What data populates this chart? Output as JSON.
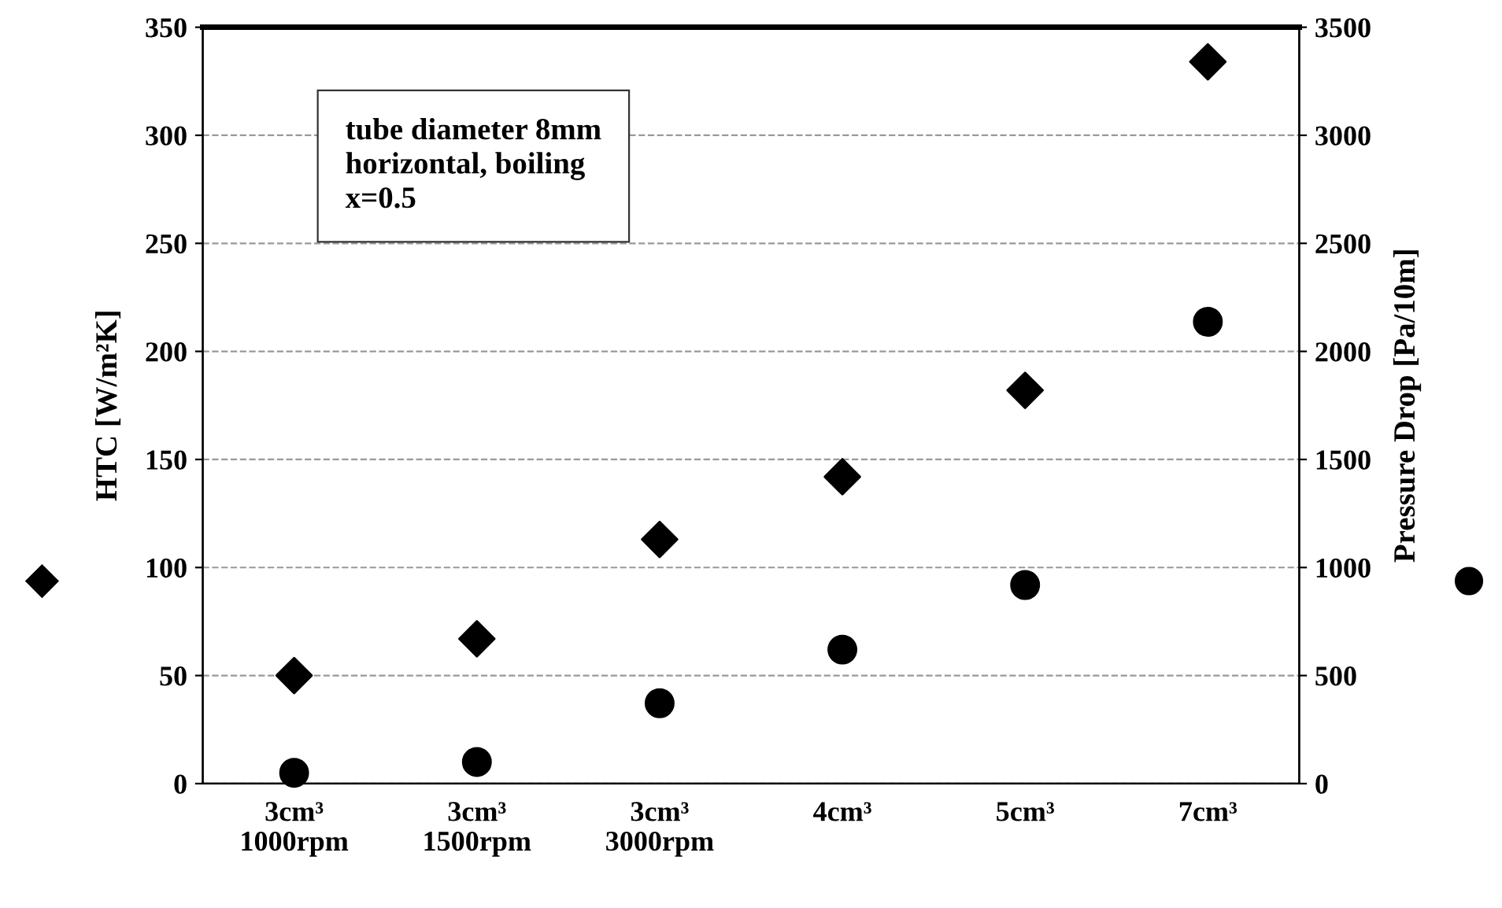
{
  "chart_data": {
    "type": "scatter",
    "ylabel": "HTC [W/m²K]",
    "y2label": "Pressure Drop [Pa/10m]",
    "categories": [
      "3cm³\n1000rpm",
      "3cm³\n1500rpm",
      "3cm³\n3000rpm",
      "4cm³",
      "5cm³",
      "7cm³"
    ],
    "series": [
      {
        "color": "#000000",
        "marker": "diamond",
        "values": [
          50,
          67,
          113,
          142,
          182,
          334
        ]
      },
      {
        "color": "#000000",
        "marker": "circle",
        "axis": "y2",
        "values": [
          50,
          100,
          372,
          620,
          919,
          2137
        ]
      }
    ],
    "ylim": [
      0,
      350
    ],
    "yticks": [
      0,
      50,
      100,
      150,
      200,
      250,
      300,
      350
    ],
    "y2lim": [
      0,
      3500
    ],
    "y2ticks": [
      0,
      500,
      1000,
      1500,
      2000,
      2500,
      3000,
      3500
    ],
    "grid": "y",
    "annotations": [
      "tube diameter 8mm\nhorizontal, boiling\nx=0.5"
    ]
  }
}
